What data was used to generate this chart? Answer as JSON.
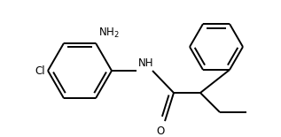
{
  "background_color": "#ffffff",
  "line_color": "#000000",
  "line_width": 1.4,
  "text_color": "#000000",
  "font_size": 8.5,
  "fig_width": 3.17,
  "fig_height": 1.55,
  "dpi": 100,
  "xlim": [
    0,
    3.17
  ],
  "ylim": [
    0,
    1.55
  ]
}
